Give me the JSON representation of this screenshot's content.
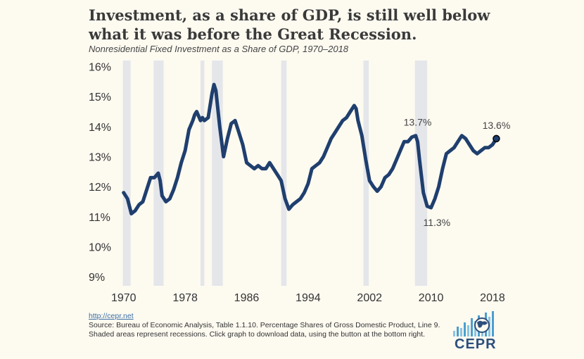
{
  "header": {
    "title_line1": "Investment, as a share of GDP, is still well below",
    "title_line2": "what it was before the Great Recession.",
    "subtitle": "Nonresidential Fixed Investment as a Share of GDP, 1970–2018"
  },
  "footer": {
    "link": "http://cepr.net",
    "source": "Source: Bureau of Economic Analysis, Table 1.1.10. Percentage Shares of Gross Domestic Product, Line 9. Shaded areas represent recessions. Click graph to download data, using the button at the bottom right."
  },
  "logo": {
    "text": "CEPR",
    "color": "#2c4f7c",
    "accent": "#4a9fd0"
  },
  "chart_data": {
    "type": "line",
    "title": "Investment, as a share of GDP, is still well below what it was before the Great Recession.",
    "subtitle": "Nonresidential Fixed Investment as a Share of GDP, 1970–2018",
    "xlabel": "",
    "ylabel": "",
    "xlim": [
      1969.2,
      2020.2
    ],
    "ylim": [
      8.7,
      16.2
    ],
    "yticks": [
      9,
      10,
      11,
      12,
      13,
      14,
      15,
      16
    ],
    "ytick_labels": [
      "9%",
      "10%",
      "11%",
      "12%",
      "13%",
      "14%",
      "15%",
      "16%"
    ],
    "xticks": [
      1970,
      1978,
      1986,
      1994,
      2002,
      2010,
      2018
    ],
    "line_color": "#1f3f6e",
    "recession_color": "#e4e6ea",
    "recessions": [
      [
        1969.9,
        1970.9
      ],
      [
        1973.9,
        1975.2
      ],
      [
        1980.0,
        1980.5
      ],
      [
        1981.5,
        1982.9
      ],
      [
        1990.5,
        1991.2
      ],
      [
        2001.2,
        2001.9
      ],
      [
        2007.9,
        2009.5
      ]
    ],
    "annotations": [
      {
        "x": 2008.25,
        "y": 13.7,
        "label": "13.7%",
        "placement": "above"
      },
      {
        "x": 2010.75,
        "y": 11.3,
        "label": "11.3%",
        "placement": "below"
      },
      {
        "x": 2018.5,
        "y": 13.6,
        "label": "13.6%",
        "placement": "above",
        "marker": true
      }
    ],
    "series": [
      {
        "name": "",
        "x": [
          1970.0,
          1970.5,
          1971.0,
          1971.5,
          1972.0,
          1972.5,
          1973.0,
          1973.5,
          1974.0,
          1974.5,
          1974.75,
          1975.0,
          1975.5,
          1976.0,
          1976.5,
          1977.0,
          1977.5,
          1978.0,
          1978.5,
          1979.0,
          1979.25,
          1979.5,
          1980.0,
          1980.25,
          1980.5,
          1981.0,
          1981.5,
          1981.75,
          1982.0,
          1982.5,
          1983.0,
          1983.5,
          1984.0,
          1984.5,
          1985.0,
          1985.5,
          1986.0,
          1986.5,
          1987.0,
          1987.5,
          1988.0,
          1988.5,
          1989.0,
          1989.5,
          1990.0,
          1990.5,
          1991.0,
          1991.5,
          1992.0,
          1992.5,
          1993.0,
          1993.5,
          1994.0,
          1994.5,
          1995.0,
          1995.5,
          1996.0,
          1996.5,
          1997.0,
          1997.5,
          1998.0,
          1998.5,
          1999.0,
          1999.5,
          2000.0,
          2000.25,
          2000.5,
          2001.0,
          2001.5,
          2002.0,
          2002.5,
          2003.0,
          2003.5,
          2004.0,
          2004.5,
          2005.0,
          2005.5,
          2006.0,
          2006.5,
          2007.0,
          2007.5,
          2008.0,
          2008.25,
          2008.5,
          2009.0,
          2009.5,
          2010.0,
          2010.5,
          2010.75,
          2011.0,
          2011.5,
          2012.0,
          2012.5,
          2013.0,
          2013.5,
          2014.0,
          2014.5,
          2015.0,
          2015.5,
          2016.0,
          2016.5,
          2017.0,
          2017.5,
          2018.0,
          2018.5
        ],
        "values": [
          11.8,
          11.6,
          11.1,
          11.2,
          11.4,
          11.5,
          11.9,
          12.3,
          12.3,
          12.45,
          12.2,
          11.7,
          11.5,
          11.6,
          11.9,
          12.3,
          12.8,
          13.2,
          13.9,
          14.2,
          14.4,
          14.5,
          14.2,
          14.3,
          14.2,
          14.3,
          15.1,
          15.4,
          15.2,
          14.0,
          13.0,
          13.6,
          14.1,
          14.2,
          13.8,
          13.4,
          12.8,
          12.7,
          12.6,
          12.7,
          12.6,
          12.6,
          12.8,
          12.6,
          12.4,
          12.2,
          11.6,
          11.25,
          11.4,
          11.5,
          11.6,
          11.8,
          12.1,
          12.6,
          12.7,
          12.8,
          13.0,
          13.3,
          13.6,
          13.8,
          14.0,
          14.2,
          14.3,
          14.5,
          14.7,
          14.6,
          14.2,
          13.7,
          12.9,
          12.2,
          12.0,
          11.85,
          12.0,
          12.3,
          12.4,
          12.6,
          12.9,
          13.2,
          13.5,
          13.5,
          13.65,
          13.7,
          13.5,
          12.9,
          11.8,
          11.35,
          11.3,
          11.6,
          11.8,
          12.0,
          12.6,
          13.1,
          13.2,
          13.3,
          13.5,
          13.7,
          13.6,
          13.4,
          13.2,
          13.1,
          13.2,
          13.3,
          13.3,
          13.4,
          13.6
        ]
      }
    ]
  }
}
